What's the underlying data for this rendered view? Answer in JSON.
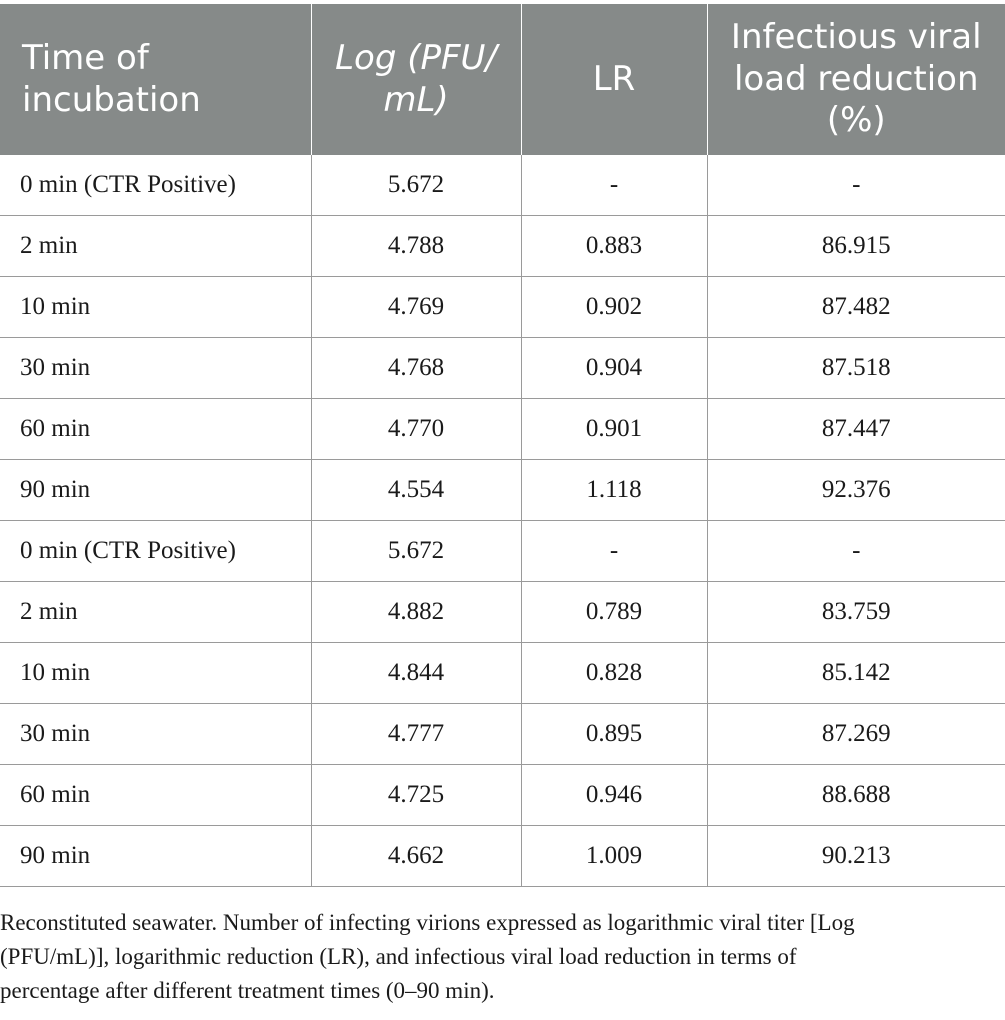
{
  "table": {
    "headers": [
      {
        "line1": "Time of",
        "line2": "incubation",
        "line3": ""
      },
      {
        "line1": "Log (PFU/",
        "line2": "mL)",
        "line3": ""
      },
      {
        "line1": "LR",
        "line2": "",
        "line3": ""
      },
      {
        "line1": "Infectious viral",
        "line2": "load reduction",
        "line3": "(%)"
      }
    ],
    "rows": [
      [
        "0 min (CTR Positive)",
        "5.672",
        "-",
        "-"
      ],
      [
        "2 min",
        "4.788",
        "0.883",
        "86.915"
      ],
      [
        "10 min",
        "4.769",
        "0.902",
        "87.482"
      ],
      [
        "30 min",
        "4.768",
        "0.904",
        "87.518"
      ],
      [
        "60 min",
        "4.770",
        "0.901",
        "87.447"
      ],
      [
        "90 min",
        "4.554",
        "1.118",
        "92.376"
      ],
      [
        "0 min (CTR Positive)",
        "5.672",
        "-",
        "-"
      ],
      [
        "2 min",
        "4.882",
        "0.789",
        "83.759"
      ],
      [
        "10 min",
        "4.844",
        "0.828",
        "85.142"
      ],
      [
        "30 min",
        "4.777",
        "0.895",
        "87.269"
      ],
      [
        "60 min",
        "4.725",
        "0.946",
        "88.688"
      ],
      [
        "90 min",
        "4.662",
        "1.009",
        "90.213"
      ]
    ]
  },
  "caption": {
    "line1": "Reconstituted seawater. Number of infecting virions expressed as logarithmic viral titer [Log",
    "line2": "(PFU/mL)], logarithmic reduction (LR), and infectious viral load reduction in terms of",
    "line3": "percentage after different treatment times (0–90 min)."
  },
  "colors": {
    "header_bg": "#868a89",
    "header_text": "#ffffff",
    "grid": "#9a9a9a"
  }
}
